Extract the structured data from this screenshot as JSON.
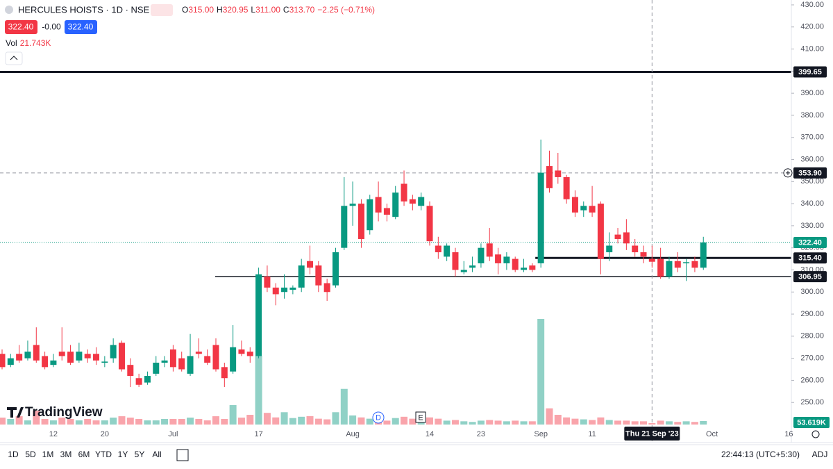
{
  "header": {
    "symbol": "HERCULES HOISTS · 1D · NSE",
    "open_label": "O",
    "open": "315.00",
    "high_label": "H",
    "high": "320.95",
    "low_label": "L",
    "low": "311.00",
    "close_label": "C",
    "close": "313.70",
    "change": "−2.25 (−0.71%)",
    "bid": "322.40",
    "spread": "-0.00",
    "ask": "322.40",
    "vol_label": "Vol"
  },
  "chart_data": {
    "type": "candlestick",
    "categories": [
      null,
      null,
      null,
      null,
      null,
      null,
      "12",
      null,
      null,
      null,
      null,
      null,
      "20",
      null,
      null,
      null,
      null,
      null,
      null,
      null,
      "Jul",
      null,
      null,
      null,
      null,
      null,
      null,
      null,
      null,
      null,
      "17",
      null,
      null,
      null,
      null,
      null,
      null,
      null,
      null,
      null,
      null,
      "Aug",
      null,
      null,
      null,
      null,
      null,
      null,
      null,
      null,
      "14",
      null,
      null,
      null,
      null,
      null,
      "23",
      null,
      null,
      null,
      null,
      null,
      null,
      "Sep",
      null,
      null,
      null,
      null,
      null,
      "11",
      null,
      null,
      null,
      null,
      null,
      null,
      null,
      null,
      null,
      null,
      null,
      null,
      null
    ],
    "x_extra_ticks": [
      "Oct",
      "16"
    ],
    "crosshair_label": "Thu 21 Sep '23",
    "open": [
      272,
      267,
      272,
      270,
      276,
      271,
      267,
      273,
      273,
      269,
      272,
      272,
      268,
      270,
      277,
      267,
      261,
      259,
      263,
      268,
      274,
      270,
      263,
      273,
      271,
      276,
      266,
      264,
      274,
      273,
      271,
      307,
      302,
      300,
      301,
      302,
      314,
      312,
      304,
      303,
      320,
      339,
      340,
      328,
      343,
      338,
      334,
      349,
      342,
      339,
      339,
      321,
      316,
      318,
      309,
      311,
      313,
      322,
      317,
      313,
      315,
      310,
      312,
      313,
      357,
      355,
      352,
      343,
      337,
      339,
      340,
      318,
      326,
      327,
      321,
      318,
      315,
      315,
      307,
      314,
      313,
      314,
      311
    ],
    "high": [
      274,
      272,
      276,
      278,
      284,
      273,
      272,
      284,
      276,
      277,
      274,
      275,
      271,
      279,
      278,
      270,
      263,
      264,
      271,
      271,
      276,
      273,
      281,
      279,
      274,
      279,
      268,
      285,
      278,
      275,
      311,
      312,
      304,
      308,
      303,
      315,
      321,
      314,
      306,
      320,
      352,
      350,
      342,
      344,
      350,
      340,
      348,
      355,
      344,
      345,
      341,
      325,
      322,
      320,
      314,
      316,
      322,
      329,
      320,
      318,
      316,
      315,
      313,
      369,
      364,
      363,
      353,
      346,
      341,
      348,
      341,
      327,
      329,
      333,
      324,
      321,
      320.95,
      320,
      316,
      318,
      315,
      316,
      325
    ],
    "low": [
      265,
      266,
      268,
      269,
      268,
      265,
      266,
      269,
      267,
      268,
      268,
      267,
      266,
      268,
      264,
      257,
      257,
      258,
      262,
      266,
      264,
      264,
      262,
      270,
      267,
      264,
      257,
      263,
      271,
      268,
      270,
      300,
      294,
      297,
      299,
      300,
      308,
      300,
      296,
      302,
      319,
      330,
      320,
      326,
      332,
      332,
      333,
      339,
      337,
      337,
      321,
      315,
      314,
      307,
      308,
      309,
      311,
      314,
      308,
      310,
      309,
      309,
      309,
      311,
      345,
      349,
      340,
      334,
      334,
      334,
      308,
      314,
      322,
      319,
      316,
      313,
      311,
      306,
      306,
      309,
      305,
      309,
      310
    ],
    "close": [
      266,
      270,
      269,
      273,
      269,
      266,
      269,
      271,
      268,
      273,
      270,
      269,
      268.5,
      276,
      265,
      262,
      258,
      262,
      268,
      269,
      266,
      265,
      271,
      272,
      268,
      265,
      261,
      275,
      272,
      271,
      308,
      302,
      299,
      302,
      302,
      312,
      311,
      303,
      300,
      318,
      339,
      340,
      324,
      342,
      336,
      335,
      345,
      341,
      340,
      343,
      323,
      318,
      321,
      310,
      310,
      312,
      320,
      316,
      313,
      316,
      310,
      311,
      310,
      354,
      347,
      352,
      342,
      336,
      339,
      336,
      315,
      321,
      324,
      322,
      318,
      316,
      313.7,
      307,
      314,
      311,
      313.5,
      311,
      322.4
    ],
    "volume": [
      107,
      86,
      128,
      64,
      214,
      86,
      64,
      107,
      86,
      64,
      86,
      64,
      64,
      107,
      128,
      107,
      86,
      64,
      64,
      86,
      86,
      86,
      107,
      86,
      64,
      128,
      86,
      300,
      107,
      150,
      1060,
      180,
      110,
      190,
      100,
      120,
      130,
      90,
      80,
      190,
      550,
      140,
      110,
      90,
      80,
      60,
      100,
      120,
      90,
      80,
      110,
      90,
      60,
      70,
      50,
      40,
      60,
      70,
      60,
      50,
      60,
      50,
      50,
      1630,
      250,
      150,
      110,
      90,
      80,
      70,
      110,
      70,
      60,
      60,
      50,
      50,
      21.743,
      60,
      50,
      40,
      50,
      40,
      53.619
    ],
    "volume_labels": [
      null,
      null,
      null,
      null,
      null,
      null,
      null,
      null,
      null,
      null,
      null,
      null,
      null,
      null,
      null,
      null,
      null,
      null,
      null,
      null,
      null,
      null,
      null,
      null,
      null,
      null,
      null,
      null,
      null,
      null,
      null,
      null,
      null,
      null,
      null,
      null,
      null,
      null,
      null,
      null,
      null,
      null,
      null,
      null,
      null,
      null,
      null,
      null,
      null,
      null,
      null,
      null,
      null,
      null,
      null,
      null,
      null,
      null,
      null,
      null,
      null,
      null,
      null,
      null,
      null,
      null,
      null,
      null,
      null,
      null,
      null,
      null,
      null,
      null,
      null,
      null,
      "21.743K",
      null,
      null,
      null,
      null,
      null,
      "53.619K"
    ],
    "up_color": "#089981",
    "down_color": "#f23645",
    "ylim": [
      240,
      432.2
    ],
    "yticks": [
      {
        "value": 250,
        "label": "250.00"
      },
      {
        "value": 260,
        "label": "260.00"
      },
      {
        "value": 270,
        "label": "270.00"
      },
      {
        "value": 280,
        "label": "280.00"
      },
      {
        "value": 290,
        "label": "290.00"
      },
      {
        "value": 300,
        "label": "300.00"
      },
      {
        "value": 310,
        "label": "310.00"
      },
      {
        "value": 320,
        "label": "320.00"
      },
      {
        "value": 330,
        "label": "330.00"
      },
      {
        "value": 340,
        "label": "340.00"
      },
      {
        "value": 350,
        "label": "350.00"
      },
      {
        "value": 360,
        "label": "360.00"
      },
      {
        "value": 370,
        "label": "370.00"
      },
      {
        "value": 380,
        "label": "380.00"
      },
      {
        "value": 390,
        "label": "390.00"
      },
      {
        "value": 400,
        "label": "400.00"
      },
      {
        "value": 410,
        "label": "410.00"
      },
      {
        "value": 420,
        "label": "420.00"
      },
      {
        "value": 430,
        "label": "430.00"
      }
    ],
    "levels": [
      399.65,
      {
        "value": 315.4,
        "label": "315.40"
      },
      306.95
    ],
    "hover_price": {
      "value": 353.9,
      "label": "353.90"
    },
    "last_price": {
      "value": 322.4,
      "label": "322.40"
    },
    "events": [
      "D",
      "E"
    ],
    "grid": false
  },
  "logo": "TradingView",
  "toolbar": {
    "ranges": [
      "1D",
      "5D",
      "1M",
      "3M",
      "6M",
      "YTD",
      "1Y",
      "5Y",
      "All"
    ],
    "time": "22:44:13 (UTC+5:30)",
    "adj": "ADJ"
  }
}
